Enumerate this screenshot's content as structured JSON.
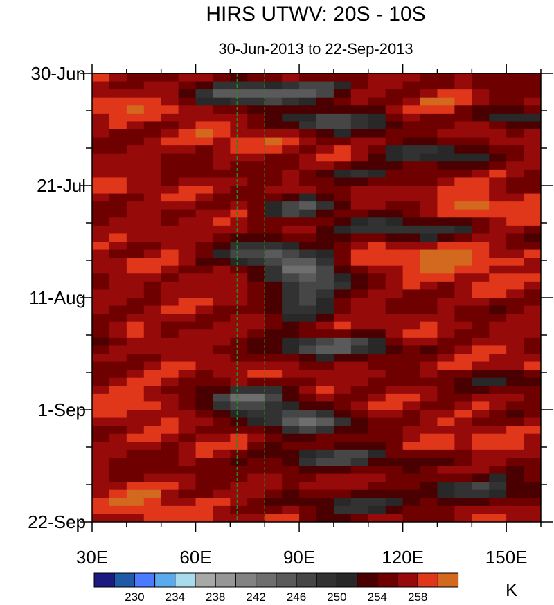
{
  "chart_data": {
    "type": "heatmap",
    "title": "HIRS UTWV: 20S - 10S",
    "subtitle": "30-Jun-2013 to 22-Sep-2013",
    "x_axis": {
      "range": [
        30,
        160
      ],
      "ticks": [
        {
          "value": 30,
          "label": "30E"
        },
        {
          "value": 60,
          "label": "60E"
        },
        {
          "value": 90,
          "label": "90E"
        },
        {
          "value": 120,
          "label": "120E"
        },
        {
          "value": 150,
          "label": "150E"
        }
      ],
      "minor_step": 10
    },
    "y_axis": {
      "range_days": [
        0,
        84
      ],
      "ticks": [
        {
          "value": 0,
          "label": "30-Jun"
        },
        {
          "value": 21,
          "label": "21-Jul"
        },
        {
          "value": 42,
          "label": "11-Aug"
        },
        {
          "value": 63,
          "label": "1-Sep"
        },
        {
          "value": 84,
          "label": "22-Sep"
        }
      ],
      "minor_step": 7,
      "direction": "top-to-bottom"
    },
    "reference_lines": {
      "longitudes": [
        72,
        80
      ],
      "color": "#228b22",
      "style": "dashed"
    },
    "colorbar": {
      "unit": "K",
      "colors": [
        "#1a1a80",
        "#1e5aa8",
        "#4a7aff",
        "#5aaaee",
        "#a8dcec",
        "#a8a8a8",
        "#969696",
        "#828282",
        "#6e6e6e",
        "#5a5a5a",
        "#464646",
        "#323232",
        "#282828",
        "#4a0000",
        "#6e0000",
        "#960a0a",
        "#e0361a",
        "#d2691e"
      ],
      "tick_labels": [
        "230",
        "234",
        "238",
        "242",
        "246",
        "250",
        "254",
        "258"
      ],
      "tick_after_box": [
        1,
        3,
        5,
        7,
        9,
        11,
        13,
        15
      ]
    },
    "grid": {
      "lon_step": 5,
      "day_step": 1.5,
      "dry_bands": [
        {
          "day": 4,
          "lon": 75,
          "strength": 1.0,
          "width_lon": 14,
          "width_day": 2.2
        },
        {
          "day": 3,
          "lon": 95,
          "strength": 0.8,
          "width_lon": 12,
          "width_day": 2.0
        },
        {
          "day": 9,
          "lon": 100,
          "strength": 0.8,
          "width_lon": 16,
          "width_day": 2.4
        },
        {
          "day": 8,
          "lon": 150,
          "strength": 0.7,
          "width_lon": 10,
          "width_day": 2.0
        },
        {
          "day": 15,
          "lon": 128,
          "strength": 0.7,
          "width_lon": 14,
          "width_day": 2.0
        },
        {
          "day": 19,
          "lon": 110,
          "strength": 0.6,
          "width_lon": 14,
          "width_day": 1.8
        },
        {
          "day": 25,
          "lon": 90,
          "strength": 0.9,
          "width_lon": 12,
          "width_day": 2.4
        },
        {
          "day": 29,
          "lon": 118,
          "strength": 0.8,
          "width_lon": 20,
          "width_day": 2.0
        },
        {
          "day": 34,
          "lon": 82,
          "strength": 1.0,
          "width_lon": 14,
          "width_day": 2.8
        },
        {
          "day": 38,
          "lon": 94,
          "strength": 1.0,
          "width_lon": 10,
          "width_day": 3.2
        },
        {
          "day": 43,
          "lon": 90,
          "strength": 0.9,
          "width_lon": 10,
          "width_day": 3.0
        },
        {
          "day": 51,
          "lon": 100,
          "strength": 0.9,
          "width_lon": 18,
          "width_day": 2.2
        },
        {
          "day": 57,
          "lon": 150,
          "strength": 0.5,
          "width_lon": 14,
          "width_day": 2.0
        },
        {
          "day": 61,
          "lon": 75,
          "strength": 1.0,
          "width_lon": 14,
          "width_day": 2.6
        },
        {
          "day": 65,
          "lon": 92,
          "strength": 1.0,
          "width_lon": 14,
          "width_day": 2.4
        },
        {
          "day": 72,
          "lon": 100,
          "strength": 0.8,
          "width_lon": 20,
          "width_day": 2.4
        },
        {
          "day": 78,
          "lon": 140,
          "strength": 0.7,
          "width_lon": 20,
          "width_day": 2.4
        },
        {
          "day": 81,
          "lon": 108,
          "strength": 0.6,
          "width_lon": 16,
          "width_day": 2.0
        },
        {
          "day": 50,
          "lon": 32,
          "strength": 0.5,
          "width_lon": 6,
          "width_day": 2.0
        }
      ],
      "moist_bands": [
        {
          "day": 6,
          "lon": 40,
          "strength": 0.9,
          "width_lon": 12,
          "width_day": 2.0
        },
        {
          "day": 12,
          "lon": 70,
          "strength": 0.8,
          "width_lon": 16,
          "width_day": 2.0
        },
        {
          "day": 5,
          "lon": 135,
          "strength": 0.7,
          "width_lon": 10,
          "width_day": 1.8
        },
        {
          "day": 23,
          "lon": 95,
          "strength": 0.8,
          "width_lon": 20,
          "width_day": 1.6
        },
        {
          "day": 25,
          "lon": 140,
          "strength": 1.0,
          "width_lon": 18,
          "width_day": 2.4
        },
        {
          "day": 35,
          "lon": 130,
          "strength": 1.0,
          "width_lon": 26,
          "width_day": 3.5
        },
        {
          "day": 31,
          "lon": 50,
          "strength": 0.7,
          "width_lon": 14,
          "width_day": 1.8
        },
        {
          "day": 60,
          "lon": 45,
          "strength": 1.0,
          "width_lon": 14,
          "width_day": 3.2
        },
        {
          "day": 70,
          "lon": 130,
          "strength": 0.8,
          "width_lon": 18,
          "width_day": 2.0
        },
        {
          "day": 81,
          "lon": 45,
          "strength": 1.0,
          "width_lon": 14,
          "width_day": 2.8
        },
        {
          "day": 45,
          "lon": 60,
          "strength": 0.6,
          "width_lon": 12,
          "width_day": 2.0
        },
        {
          "day": 55,
          "lon": 145,
          "strength": 0.6,
          "width_lon": 12,
          "width_day": 2.0
        }
      ]
    }
  }
}
